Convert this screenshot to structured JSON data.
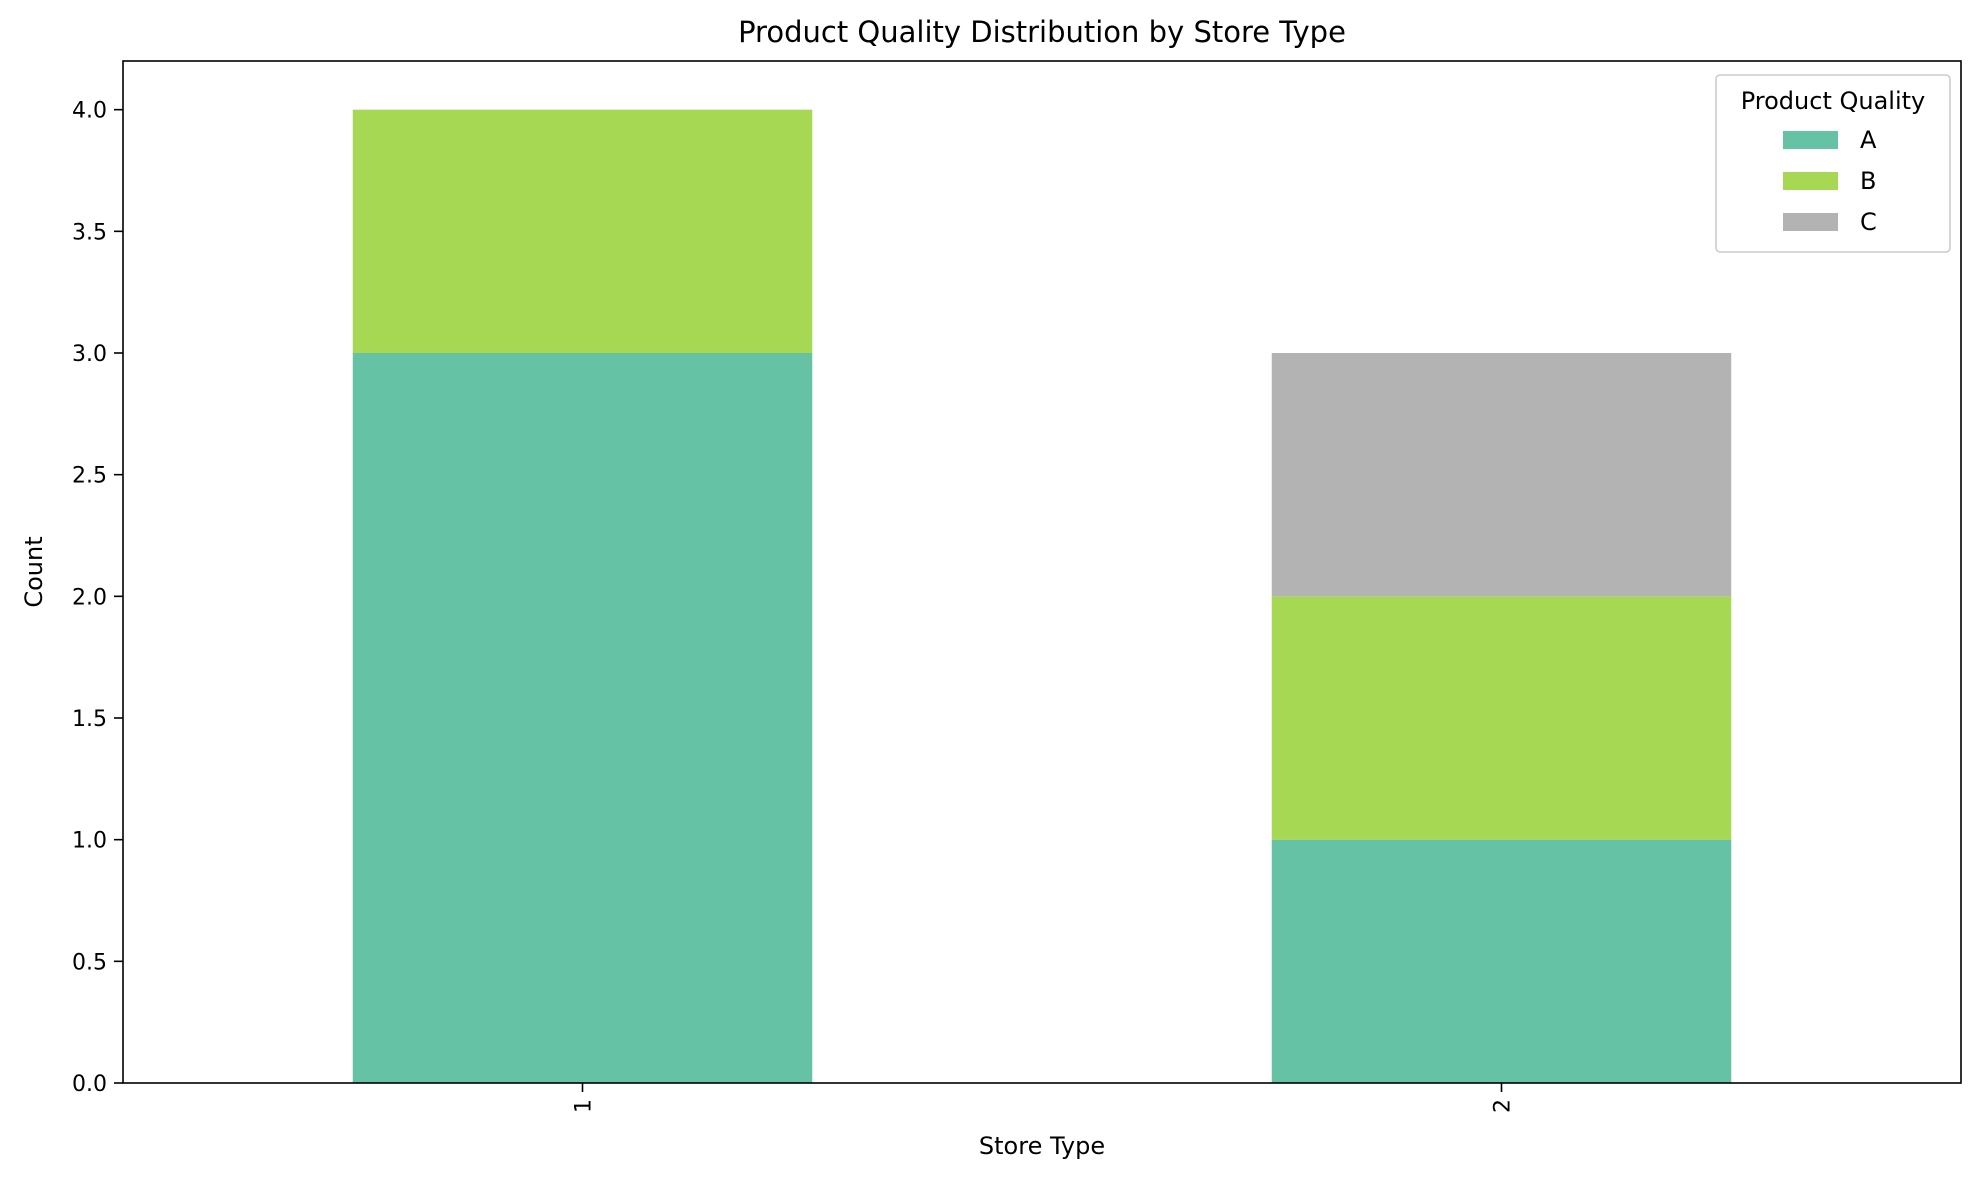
{
  "chart_data": {
    "type": "bar",
    "stacked": true,
    "title": "Product Quality Distribution by Store Type",
    "xlabel": "Store Type",
    "ylabel": "Count",
    "categories": [
      "1",
      "2"
    ],
    "series": [
      {
        "name": "A",
        "values": [
          3,
          1
        ],
        "color": "#66c2a5"
      },
      {
        "name": "B",
        "values": [
          1,
          1
        ],
        "color": "#a6d854"
      },
      {
        "name": "C",
        "values": [
          0,
          1
        ],
        "color": "#b3b3b3"
      }
    ],
    "ylim": [
      0,
      4.2
    ],
    "yticks": [
      "0.0",
      "0.5",
      "1.0",
      "1.5",
      "2.0",
      "2.5",
      "3.0",
      "3.5",
      "4.0"
    ],
    "xtick_rotation": "vertical",
    "grid": false,
    "legend": {
      "title": "Product Quality",
      "position": "top-right"
    }
  }
}
